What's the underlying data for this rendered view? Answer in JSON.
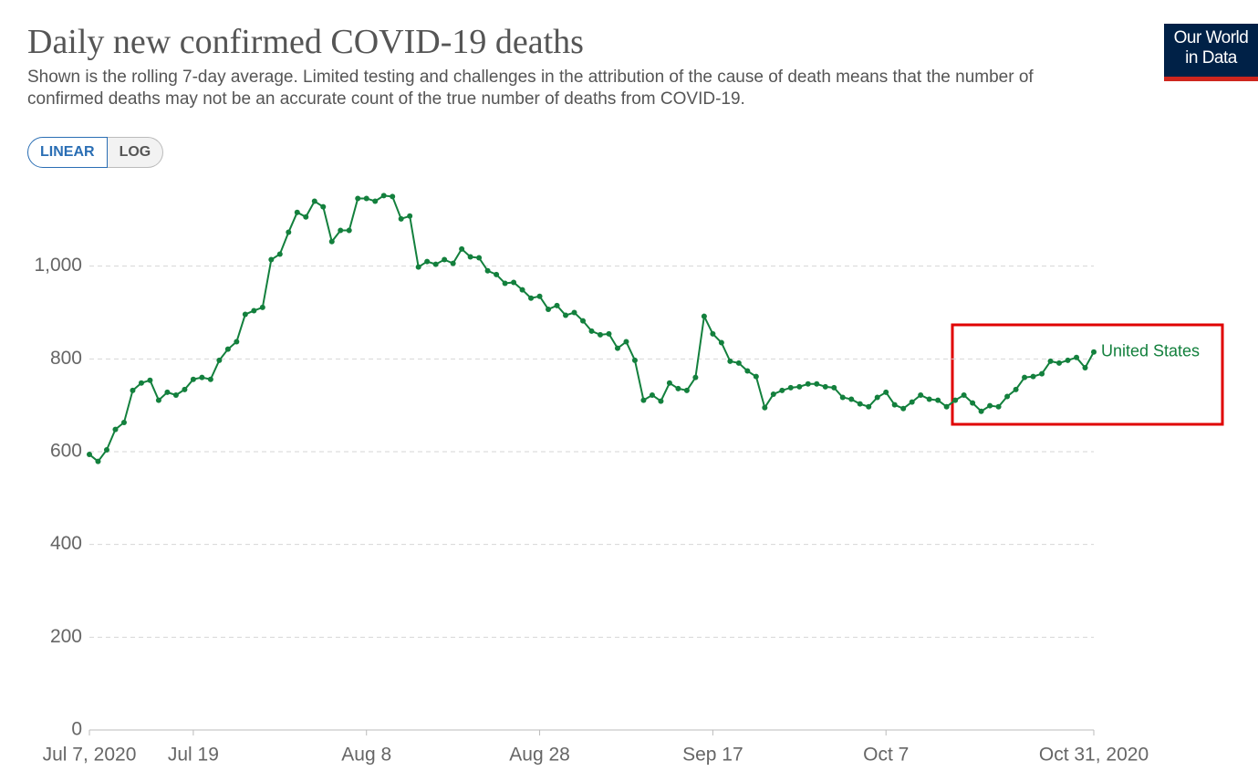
{
  "chart_data": {
    "type": "line",
    "title": "Daily new confirmed COVID-19 deaths",
    "subtitle": "Shown is the rolling 7-day average. Limited testing and challenges in the attribution of the cause of death means that the number of confirmed deaths may not be an accurate count of the true number of deaths from COVID-19.",
    "scale_buttons": [
      "LINEAR",
      "LOG"
    ],
    "logo": [
      "Our World",
      "in Data"
    ],
    "x": [
      "2020-07-07",
      "2020-07-08",
      "2020-07-09",
      "2020-07-10",
      "2020-07-11",
      "2020-07-12",
      "2020-07-13",
      "2020-07-14",
      "2020-07-15",
      "2020-07-16",
      "2020-07-17",
      "2020-07-18",
      "2020-07-19",
      "2020-07-20",
      "2020-07-21",
      "2020-07-22",
      "2020-07-23",
      "2020-07-24",
      "2020-07-25",
      "2020-07-26",
      "2020-07-27",
      "2020-07-28",
      "2020-07-29",
      "2020-07-30",
      "2020-07-31",
      "2020-08-01",
      "2020-08-02",
      "2020-08-03",
      "2020-08-04",
      "2020-08-05",
      "2020-08-06",
      "2020-08-07",
      "2020-08-08",
      "2020-08-09",
      "2020-08-10",
      "2020-08-11",
      "2020-08-12",
      "2020-08-13",
      "2020-08-14",
      "2020-08-15",
      "2020-08-16",
      "2020-08-17",
      "2020-08-18",
      "2020-08-19",
      "2020-08-20",
      "2020-08-21",
      "2020-08-22",
      "2020-08-23",
      "2020-08-24",
      "2020-08-25",
      "2020-08-26",
      "2020-08-27",
      "2020-08-28",
      "2020-08-29",
      "2020-08-30",
      "2020-08-31",
      "2020-09-01",
      "2020-09-02",
      "2020-09-03",
      "2020-09-04",
      "2020-09-05",
      "2020-09-06",
      "2020-09-07",
      "2020-09-08",
      "2020-09-09",
      "2020-09-10",
      "2020-09-11",
      "2020-09-12",
      "2020-09-13",
      "2020-09-14",
      "2020-09-15",
      "2020-09-16",
      "2020-09-17",
      "2020-09-18",
      "2020-09-19",
      "2020-09-20",
      "2020-09-21",
      "2020-09-22",
      "2020-09-23",
      "2020-09-24",
      "2020-09-25",
      "2020-09-26",
      "2020-09-27",
      "2020-09-28",
      "2020-09-29",
      "2020-09-30",
      "2020-10-01",
      "2020-10-02",
      "2020-10-03",
      "2020-10-04",
      "2020-10-05",
      "2020-10-06",
      "2020-10-07",
      "2020-10-08",
      "2020-10-09",
      "2020-10-10",
      "2020-10-11",
      "2020-10-12",
      "2020-10-13",
      "2020-10-14",
      "2020-10-15",
      "2020-10-16",
      "2020-10-17",
      "2020-10-18",
      "2020-10-19",
      "2020-10-20",
      "2020-10-21",
      "2020-10-22",
      "2020-10-23",
      "2020-10-24",
      "2020-10-25",
      "2020-10-26",
      "2020-10-27",
      "2020-10-28",
      "2020-10-29",
      "2020-10-30",
      "2020-10-31"
    ],
    "series": [
      {
        "name": "United States",
        "color": "#13803d",
        "values": [
          594,
          579,
          604,
          648,
          663,
          732,
          748,
          754,
          711,
          728,
          722,
          734,
          756,
          760,
          756,
          797,
          821,
          837,
          896,
          904,
          911,
          1014,
          1026,
          1073,
          1116,
          1106,
          1140,
          1128,
          1053,
          1077,
          1077,
          1146,
          1146,
          1140,
          1152,
          1150,
          1102,
          1108,
          998,
          1010,
          1004,
          1014,
          1006,
          1037,
          1020,
          1018,
          990,
          982,
          963,
          965,
          949,
          931,
          935,
          907,
          915,
          894,
          900,
          882,
          860,
          852,
          854,
          823,
          837,
          797,
          711,
          722,
          709,
          748,
          736,
          732,
          760,
          892,
          854,
          835,
          795,
          791,
          774,
          762,
          695,
          724,
          732,
          738,
          740,
          746,
          746,
          740,
          738,
          717,
          713,
          703,
          697,
          717,
          728,
          701,
          693,
          707,
          722,
          713,
          711,
          697,
          711,
          722,
          705,
          687,
          699,
          697,
          719,
          734,
          760,
          762,
          768,
          795,
          791,
          797,
          803,
          781,
          815
        ]
      }
    ],
    "xlim": [
      "2020-07-07",
      "2020-10-31"
    ],
    "xticks": [
      {
        "value": "2020-07-07",
        "label": "Jul 7, 2020"
      },
      {
        "value": "2020-07-19",
        "label": "Jul 19"
      },
      {
        "value": "2020-08-08",
        "label": "Aug 8"
      },
      {
        "value": "2020-08-28",
        "label": "Aug 28"
      },
      {
        "value": "2020-09-17",
        "label": "Sep 17"
      },
      {
        "value": "2020-10-07",
        "label": "Oct 7"
      },
      {
        "value": "2020-10-31",
        "label": "Oct 31, 2020"
      }
    ],
    "ylim": [
      0,
      1200
    ],
    "yticks": [
      0,
      200,
      400,
      600,
      800,
      {
        "value": 1000,
        "label": "1,000"
      }
    ],
    "grid": true
  }
}
